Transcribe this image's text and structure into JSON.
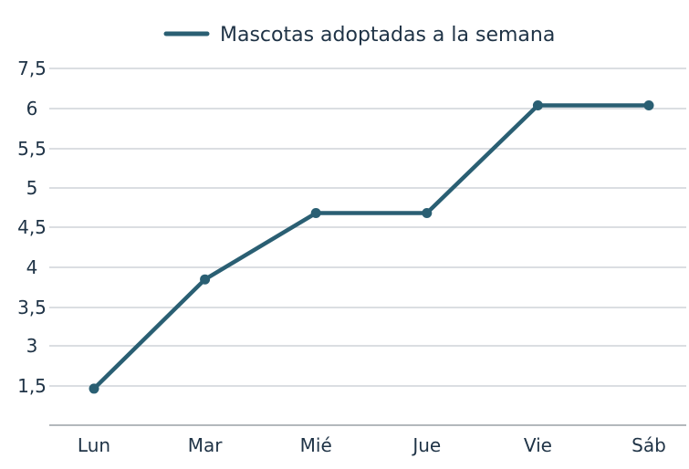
{
  "chart_data": {
    "type": "line",
    "title": "",
    "xlabel": "",
    "ylabel": "",
    "legend_position": "top-center",
    "grid": true,
    "categories": [
      "Lun",
      "Mar",
      "Mié",
      "Jue",
      "Vie",
      "Sáb"
    ],
    "y_ticks": [
      {
        "value": 1.5,
        "label": "1,5"
      },
      {
        "value": 3,
        "label": "3"
      },
      {
        "value": 3.5,
        "label": "3,5"
      },
      {
        "value": 4,
        "label": "4"
      },
      {
        "value": 4.5,
        "label": "4,5"
      },
      {
        "value": 5,
        "label": "5"
      },
      {
        "value": 5.5,
        "label": "5,5"
      },
      {
        "value": 6,
        "label": "6"
      },
      {
        "value": 7.5,
        "label": "7,5"
      }
    ],
    "series": [
      {
        "name": "Mascotas adoptadas a la semana",
        "color": "#2a5f73",
        "values": [
          1.4,
          3.85,
          4.68,
          4.68,
          6.12,
          6.12
        ]
      }
    ]
  }
}
